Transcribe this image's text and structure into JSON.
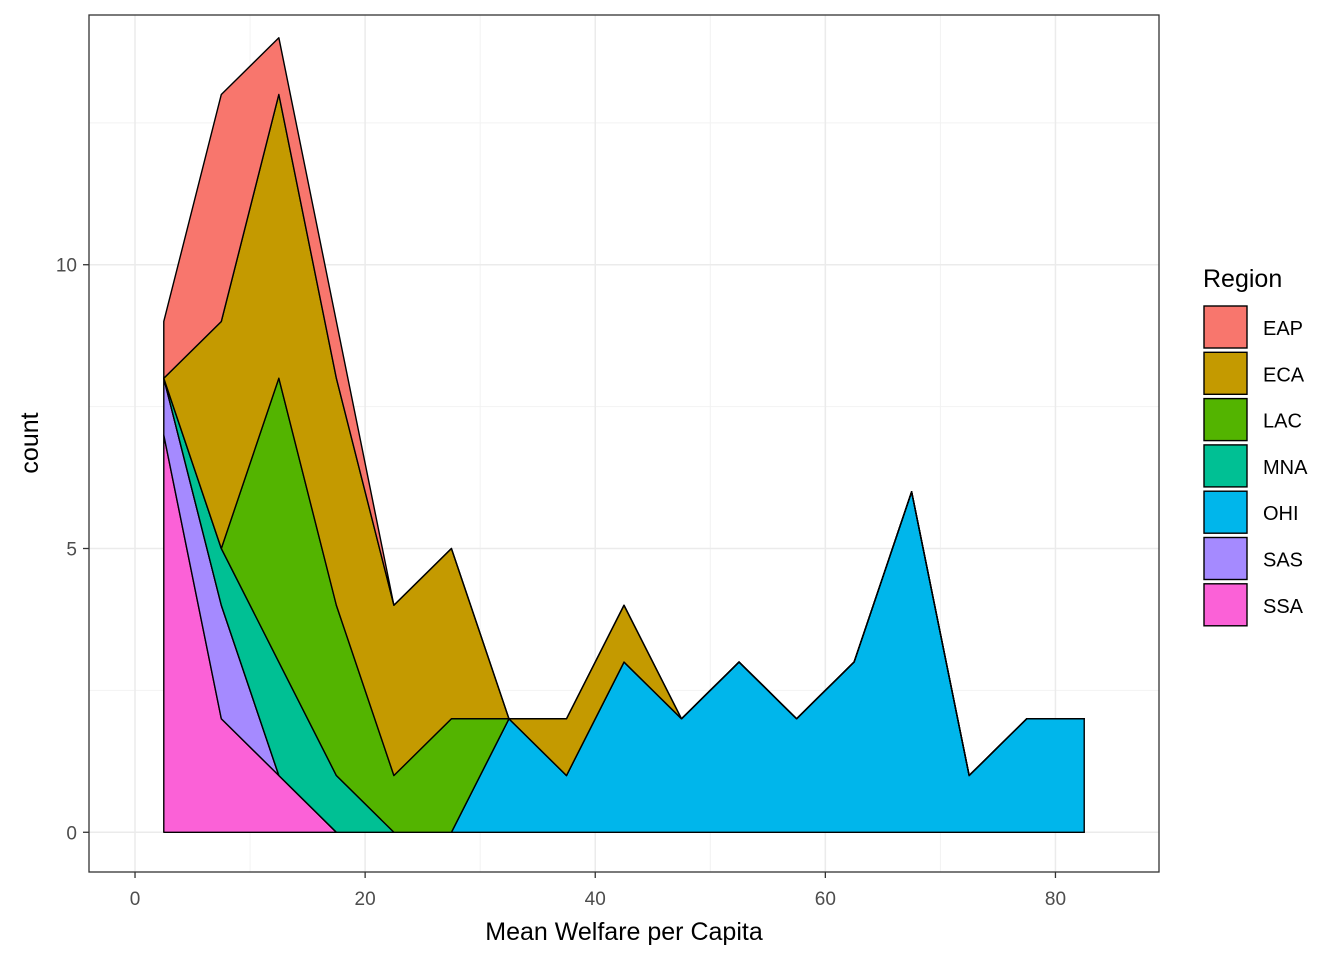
{
  "chart_data": {
    "type": "area",
    "stacked": true,
    "xlabel": "Mean Welfare per Capita",
    "ylabel": "count",
    "xlim": [
      -4,
      89
    ],
    "ylim": [
      -0.7,
      14.4
    ],
    "x_ticks": [
      0,
      20,
      40,
      60,
      80
    ],
    "y_ticks": [
      0,
      5,
      10
    ],
    "grid": true,
    "legend": {
      "title": "Region",
      "position": "right"
    },
    "x": [
      2.5,
      7.5,
      12.5,
      17.5,
      22.5,
      27.5,
      32.5,
      37.5,
      42.5,
      47.5,
      52.5,
      57.5,
      62.5,
      67.5,
      72.5,
      77.5,
      82.5
    ],
    "series": [
      {
        "name": "EAP",
        "color": "#F8766D",
        "values": [
          1,
          4,
          1,
          1,
          0,
          0,
          0,
          0,
          0,
          0,
          0,
          0,
          0,
          0,
          0,
          0,
          0
        ]
      },
      {
        "name": "ECA",
        "color": "#C49A00",
        "values": [
          0,
          4,
          5,
          4,
          3,
          3,
          0,
          1,
          1,
          0,
          0,
          0,
          0,
          0,
          0,
          0,
          0
        ]
      },
      {
        "name": "LAC",
        "color": "#53B400",
        "values": [
          0,
          0,
          5,
          3,
          1,
          2,
          0,
          0,
          0,
          0,
          0,
          0,
          0,
          0,
          0,
          0,
          0
        ]
      },
      {
        "name": "MNA",
        "color": "#00C094",
        "values": [
          0,
          1,
          2,
          1,
          0,
          0,
          0,
          0,
          0,
          0,
          0,
          0,
          0,
          0,
          0,
          0,
          0
        ]
      },
      {
        "name": "OHI",
        "color": "#00B6EB",
        "values": [
          0,
          0,
          0,
          0,
          0,
          0,
          2,
          1,
          3,
          2,
          3,
          2,
          3,
          6,
          1,
          2,
          2
        ]
      },
      {
        "name": "SAS",
        "color": "#A58AFF",
        "values": [
          1,
          2,
          0,
          0,
          0,
          0,
          0,
          0,
          0,
          0,
          0,
          0,
          0,
          0,
          0,
          0,
          0
        ]
      },
      {
        "name": "SSA",
        "color": "#FB61D7",
        "values": [
          7,
          2,
          1,
          0,
          0,
          0,
          0,
          0,
          0,
          0,
          0,
          0,
          0,
          0,
          0,
          0,
          0
        ]
      }
    ]
  }
}
